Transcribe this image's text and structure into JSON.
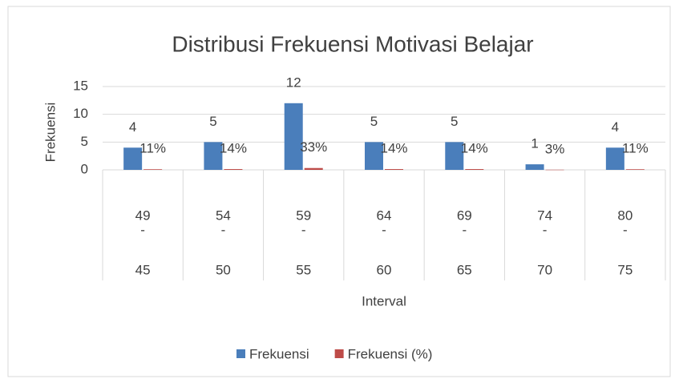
{
  "chart_data": {
    "type": "bar",
    "title": "Distribusi Frekuensi Motivasi Belajar",
    "categories": [
      [
        "49",
        "-",
        "45"
      ],
      [
        "54",
        "-",
        "50"
      ],
      [
        "59",
        "-",
        "55"
      ],
      [
        "64",
        "-",
        "60"
      ],
      [
        "69",
        "-",
        "65"
      ],
      [
        "74",
        "-",
        "70"
      ],
      [
        "80",
        "-",
        "75"
      ]
    ],
    "series": [
      {
        "name": "Frekuensi",
        "color": "#4a7ebb",
        "values": [
          4,
          5,
          12,
          5,
          5,
          1,
          4
        ]
      },
      {
        "name": "Frekuensi (%)",
        "color": "#be4b48",
        "values": [
          0.11,
          0.14,
          0.33,
          0.14,
          0.14,
          0.03,
          0.11
        ],
        "value_labels": [
          "11%",
          "14%",
          "33%",
          "14%",
          "14%",
          "3%",
          "11%"
        ]
      }
    ],
    "ylabel": "Frekuensi",
    "xlabel": "Interval",
    "ylim": [
      0,
      15
    ],
    "yticks": [
      0,
      5,
      10,
      15
    ],
    "grid": true,
    "legend": "bottom"
  }
}
